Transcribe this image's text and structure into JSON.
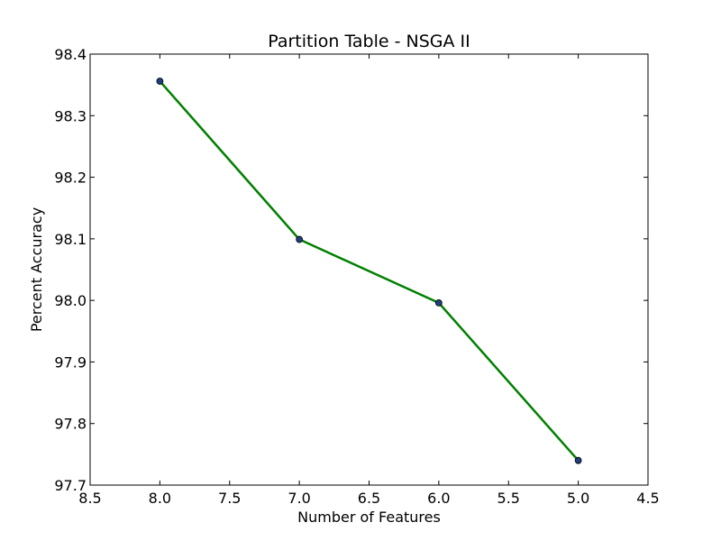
{
  "chart_data": {
    "type": "line",
    "title": "Partition Table - NSGA II",
    "xlabel": "Number of Features",
    "ylabel": "Percent Accuracy",
    "xlim": [
      8.5,
      4.5
    ],
    "ylim": [
      97.7,
      98.4
    ],
    "x_reversed": true,
    "grid": false,
    "legend": "none",
    "xticks": [
      "8.5",
      "8.0",
      "7.5",
      "7.0",
      "6.5",
      "6.0",
      "5.5",
      "5.0",
      "4.5"
    ],
    "yticks": [
      "97.7",
      "97.8",
      "97.9",
      "98.0",
      "98.1",
      "98.2",
      "98.3",
      "98.4"
    ],
    "series": [
      {
        "color": "#008000",
        "marker_color": "#1f3f7f",
        "points": [
          {
            "x": 8.0,
            "y": 98.356
          },
          {
            "x": 7.0,
            "y": 98.099
          },
          {
            "x": 6.0,
            "y": 97.996
          },
          {
            "x": 5.0,
            "y": 97.74
          }
        ]
      }
    ]
  }
}
